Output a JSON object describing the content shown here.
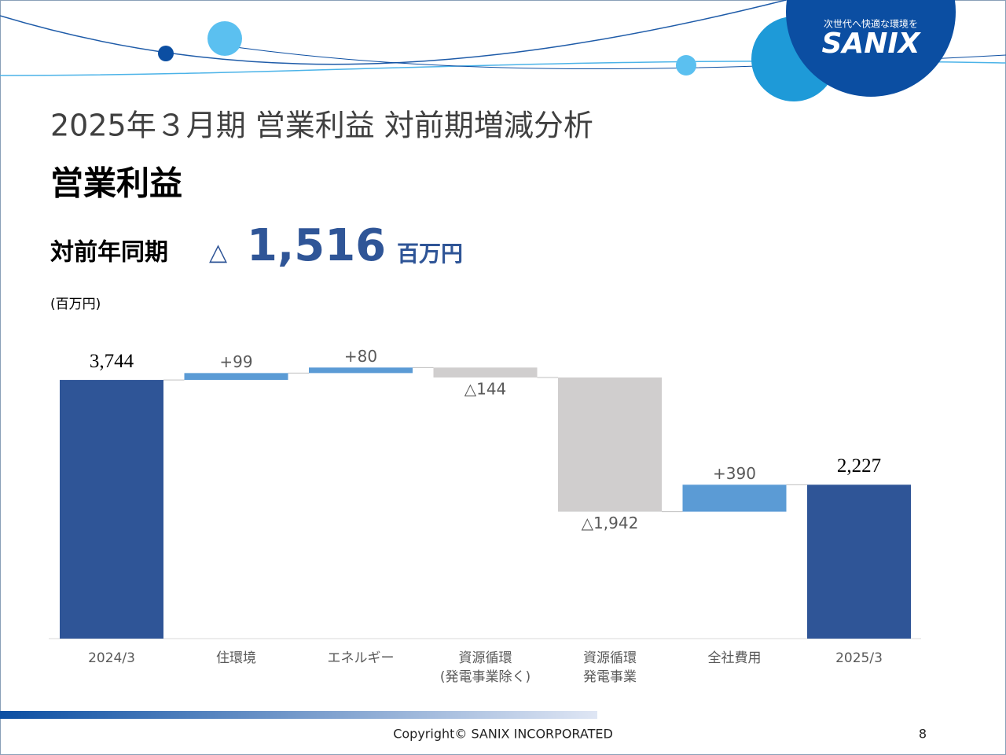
{
  "header": {
    "title": "2025年３月期 営業利益 対前期増減分析",
    "subtitle": "営業利益"
  },
  "headline": {
    "label": "対前年同期",
    "change": "△",
    "value": "1,516",
    "unit": "百万円"
  },
  "logo": {
    "tagline": "次世代へ快適な環境を",
    "name": "SANIX"
  },
  "chart_data": {
    "type": "waterfall",
    "unit_label": "(百万円)",
    "categories": [
      [
        "2024/3"
      ],
      [
        "住環境"
      ],
      [
        "エネルギー"
      ],
      [
        "資源循環",
        "(発電事業除く)"
      ],
      [
        "資源循環",
        "発電事業"
      ],
      [
        "全社費用"
      ],
      [
        "2025/3"
      ]
    ],
    "values": [
      3744,
      99,
      80,
      -144,
      -1942,
      390,
      2227
    ],
    "value_labels": [
      "3,744",
      "+99",
      "+80",
      "△144",
      "△1,942",
      "+390",
      "2,227"
    ],
    "kinds": [
      "total",
      "delta",
      "delta",
      "delta",
      "delta",
      "delta",
      "total"
    ],
    "colors": {
      "total": "#2f5597",
      "increase": "#5b9bd5",
      "decrease": "#d0cece"
    },
    "ylim": [
      0,
      4200
    ]
  },
  "footer": {
    "copyright": "Copyright©  SANIX INCORPORATED",
    "page": "8"
  }
}
